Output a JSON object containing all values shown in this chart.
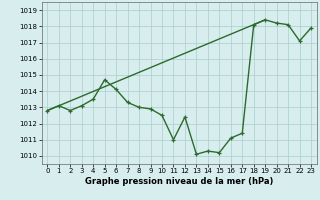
{
  "xlabel": "Graphe pression niveau de la mer (hPa)",
  "hours": [
    0,
    1,
    2,
    3,
    4,
    5,
    6,
    7,
    8,
    9,
    10,
    11,
    12,
    13,
    14,
    15,
    16,
    17,
    18,
    19,
    20,
    21,
    22,
    23
  ],
  "pressure": [
    1012.8,
    1013.1,
    1012.8,
    1013.1,
    1013.5,
    1014.7,
    1014.1,
    1013.3,
    1013.0,
    1012.9,
    1012.5,
    1011.0,
    1012.4,
    1010.1,
    1010.3,
    1010.2,
    1011.1,
    1011.4,
    1018.1,
    1018.4,
    1018.2,
    1018.1,
    1017.1,
    1017.9
  ],
  "trend_x": [
    0,
    19
  ],
  "trend_y": [
    1012.8,
    1018.4
  ],
  "line_color": "#2d6a2d",
  "bg_color": "#d8eeee",
  "grid_color": "#aacccc",
  "ylim": [
    1009.5,
    1019.5
  ],
  "yticks": [
    1010,
    1011,
    1012,
    1013,
    1014,
    1015,
    1016,
    1017,
    1018,
    1019
  ],
  "xticks": [
    0,
    1,
    2,
    3,
    4,
    5,
    6,
    7,
    8,
    9,
    10,
    11,
    12,
    13,
    14,
    15,
    16,
    17,
    18,
    19,
    20,
    21,
    22,
    23
  ],
  "xlabel_fontsize": 6.0,
  "tick_fontsize": 5.0
}
